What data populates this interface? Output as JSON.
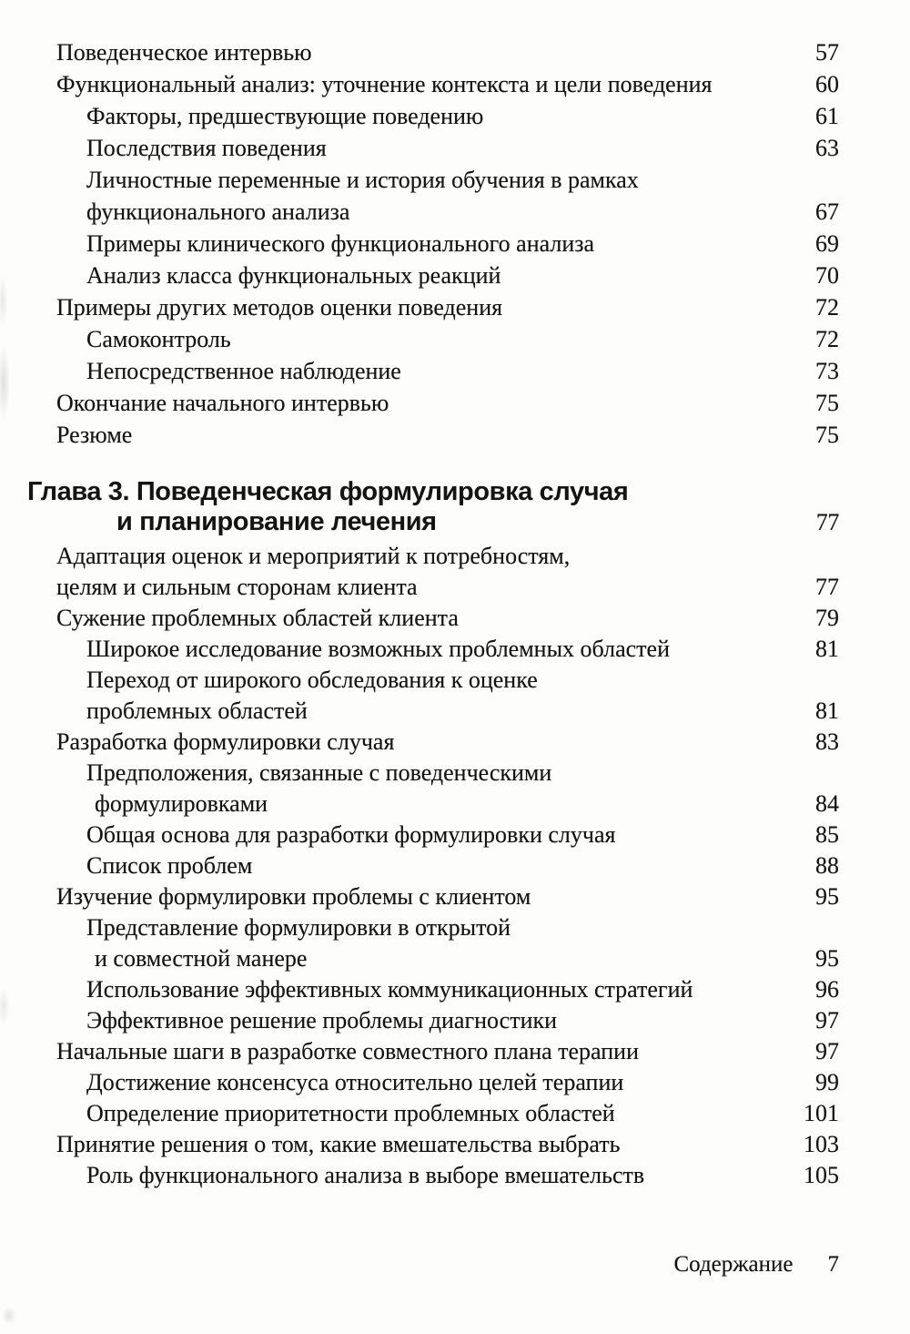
{
  "toc": {
    "top": [
      {
        "text": "Поведенческое интервью",
        "page": "57",
        "indent": 1
      },
      {
        "text": "Функциональный анализ: уточнение контекста и цели поведения",
        "page": "60",
        "indent": 1
      },
      {
        "text": "Факторы, предшествующие поведению",
        "page": "61",
        "indent": 2
      },
      {
        "text": "Последствия поведения",
        "page": "63",
        "indent": 2
      },
      {
        "text": "Личностные переменные и история обучения в рамках",
        "page": "",
        "indent": 2
      },
      {
        "text": "функционального анализа",
        "page": "67",
        "indent": 2
      },
      {
        "text": "Примеры клинического функционального анализа",
        "page": "69",
        "indent": 2
      },
      {
        "text": "Анализ класса функциональных реакций",
        "page": "70",
        "indent": 2
      },
      {
        "text": "Примеры других методов оценки поведения",
        "page": "72",
        "indent": 1
      },
      {
        "text": "Самоконтроль",
        "page": "72",
        "indent": 2
      },
      {
        "text": "Непосредственное наблюдение",
        "page": "73",
        "indent": 2
      },
      {
        "text": "Окончание начального интервью",
        "page": "75",
        "indent": 1
      },
      {
        "text": "Резюме",
        "page": "75",
        "indent": 1
      }
    ],
    "chapter": {
      "line1": "Глава 3. Поведенческая формулировка случая",
      "line2": "и планирование лечения",
      "page": "77"
    },
    "bottom": [
      {
        "text": "Адаптация оценок и мероприятий к потребностям,",
        "page": "",
        "indent": 1
      },
      {
        "text": "целям и сильным сторонам клиента",
        "page": "77",
        "indent": 1
      },
      {
        "text": "Сужение проблемных областей клиента",
        "page": "79",
        "indent": 1
      },
      {
        "text": "Широкое исследование возможных проблемных областей",
        "page": "81",
        "indent": 2
      },
      {
        "text": "Переход от широкого обследования к оценке",
        "page": "",
        "indent": 2
      },
      {
        "text": "проблемных областей",
        "page": "81",
        "indent": 2
      },
      {
        "text": "Разработка формулировки случая",
        "page": "83",
        "indent": 1
      },
      {
        "text": "Предположения, связанные с поведенческими",
        "page": "",
        "indent": 2
      },
      {
        "text": "формулировками",
        "page": "84",
        "indent": 3
      },
      {
        "text": "Общая основа для разработки формулировки случая",
        "page": "85",
        "indent": 2
      },
      {
        "text": "Список проблем",
        "page": "88",
        "indent": 2
      },
      {
        "text": "Изучение формулировки проблемы с клиентом",
        "page": "95",
        "indent": 1
      },
      {
        "text": "Представление формулировки в открытой",
        "page": "",
        "indent": 2
      },
      {
        "text": "и совместной манере",
        "page": "95",
        "indent": 3
      },
      {
        "text": "Использование эффективных коммуникационных стратегий",
        "page": "96",
        "indent": 2
      },
      {
        "text": "Эффективное решение проблемы диагностики",
        "page": "97",
        "indent": 2
      },
      {
        "text": "Начальные шаги в разработке совместного плана терапии",
        "page": "97",
        "indent": 1
      },
      {
        "text": "Достижение консенсуса относительно целей терапии",
        "page": "99",
        "indent": 2
      },
      {
        "text": "Определение приоритетности проблемных областей",
        "page": "101",
        "indent": 2
      },
      {
        "text": "Принятие решения о том, какие вмешательства выбрать",
        "page": "103",
        "indent": 1
      },
      {
        "text": "Роль функционального анализа в выборе вмешательств",
        "page": "105",
        "indent": 2
      }
    ]
  },
  "footer": {
    "label": "Содержание",
    "page_number": "7"
  }
}
